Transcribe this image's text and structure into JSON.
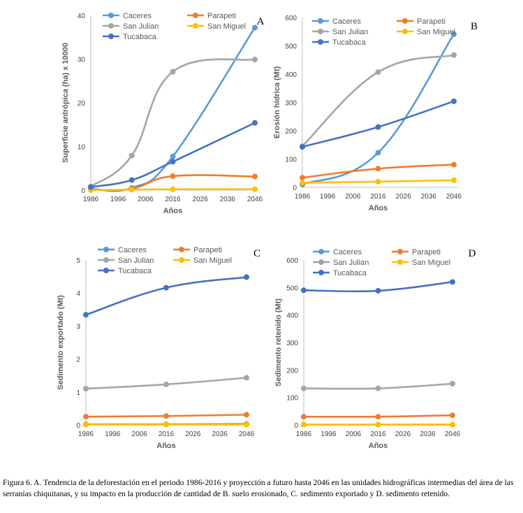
{
  "caption": "Figura 6. A. Tendencia de la deforestación en el periodo 1986-2016 y proyección a futuro hasta 2046 en las unidades hidrográficas intermedias del área de las serranías chiquitanas, y su impacto en la producción de cantidad de B. suelo erosionado, C. sedimento exportado y D. sedimento retenido.",
  "chart_data": [
    {
      "panel": "A",
      "type": "line",
      "xlabel": "Años",
      "ylabel": "Superficie antrópica (ha) x 10000",
      "xticks": [
        1986,
        1996,
        2006,
        2016,
        2026,
        2036,
        2046
      ],
      "xlim": [
        1986,
        2046
      ],
      "ylim": [
        0,
        40
      ],
      "yticks": [
        0,
        10,
        20,
        30,
        40
      ],
      "series": [
        {
          "name": "Caceres",
          "color": "#5b9bd5",
          "x": [
            1986,
            2001,
            2016,
            2046
          ],
          "y": [
            0.3,
            0.5,
            7.7,
            37.2
          ]
        },
        {
          "name": "Parapeti",
          "color": "#ed7d31",
          "x": [
            1986,
            2001,
            2016,
            2046
          ],
          "y": [
            0.1,
            0.3,
            3.2,
            3.1
          ]
        },
        {
          "name": "San Julian",
          "color": "#a5a5a5",
          "x": [
            1986,
            2001,
            2016,
            2046
          ],
          "y": [
            0.8,
            7.9,
            27.1,
            29.9
          ]
        },
        {
          "name": "San Miguel",
          "color": "#ffc000",
          "x": [
            1986,
            2001,
            2016,
            2046
          ],
          "y": [
            0.0,
            0.1,
            0.2,
            0.2
          ]
        },
        {
          "name": "Tucabaca",
          "color": "#4472c4",
          "x": [
            1986,
            2001,
            2016,
            2046
          ],
          "y": [
            0.7,
            2.3,
            6.5,
            15.4
          ]
        }
      ]
    },
    {
      "panel": "B",
      "type": "line",
      "xlabel": "Años",
      "ylabel": "Erosión hídrica (Mt)",
      "xticks": [
        1986,
        1996,
        2006,
        2016,
        2026,
        2036,
        2046
      ],
      "xlim": [
        1986,
        2046
      ],
      "ylim": [
        0,
        600
      ],
      "yticks": [
        0,
        100,
        200,
        300,
        400,
        500,
        600
      ],
      "series": [
        {
          "name": "Caceres",
          "color": "#5b9bd5",
          "x": [
            1986,
            2016,
            2046
          ],
          "y": [
            10,
            122,
            541
          ]
        },
        {
          "name": "Parapeti",
          "color": "#ed7d31",
          "x": [
            1986,
            2016,
            2046
          ],
          "y": [
            34,
            66,
            80
          ]
        },
        {
          "name": "San Julian",
          "color": "#a5a5a5",
          "x": [
            1986,
            2016,
            2046
          ],
          "y": [
            145,
            407,
            467
          ]
        },
        {
          "name": "San Miguel",
          "color": "#ffc000",
          "x": [
            1986,
            2016,
            2046
          ],
          "y": [
            16,
            20,
            25
          ]
        },
        {
          "name": "Tucabaca",
          "color": "#4472c4",
          "x": [
            1986,
            2016,
            2046
          ],
          "y": [
            143,
            213,
            304
          ]
        }
      ]
    },
    {
      "panel": "C",
      "type": "line",
      "xlabel": "Años",
      "ylabel": "Sedimento exportado (Mt)",
      "xticks": [
        1986,
        1996,
        2006,
        2016,
        2026,
        2036,
        2046
      ],
      "xlim": [
        1986,
        2046
      ],
      "ylim": [
        0,
        5
      ],
      "yticks": [
        0,
        1,
        2,
        3,
        4,
        5
      ],
      "series": [
        {
          "name": "Caceres",
          "color": "#5b9bd5",
          "x": [
            1986,
            2016,
            2046
          ],
          "y": [
            0.02,
            0.02,
            0.03
          ]
        },
        {
          "name": "Parapeti",
          "color": "#ed7d31",
          "x": [
            1986,
            2016,
            2046
          ],
          "y": [
            0.25,
            0.27,
            0.31
          ]
        },
        {
          "name": "San Julian",
          "color": "#a5a5a5",
          "x": [
            1986,
            2016,
            2046
          ],
          "y": [
            1.1,
            1.23,
            1.43
          ]
        },
        {
          "name": "San Miguel",
          "color": "#ffc000",
          "x": [
            1986,
            2016,
            2046
          ],
          "y": [
            0.01,
            0.01,
            0.01
          ]
        },
        {
          "name": "Tucabaca",
          "color": "#4472c4",
          "x": [
            1986,
            2016,
            2046
          ],
          "y": [
            3.34,
            4.16,
            4.48
          ]
        }
      ]
    },
    {
      "panel": "D",
      "type": "line",
      "xlabel": "Años",
      "ylabel": "Sedimento retenido (Mt)",
      "xticks": [
        1986,
        1996,
        2006,
        2016,
        2026,
        2036,
        2046
      ],
      "xlim": [
        1986,
        2046
      ],
      "ylim": [
        0,
        600
      ],
      "yticks": [
        0,
        100,
        200,
        300,
        400,
        500,
        600
      ],
      "series": [
        {
          "name": "Caceres",
          "color": "#5b9bd5",
          "x": [
            1986,
            2016,
            2046
          ],
          "y": [
            1,
            1,
            1
          ]
        },
        {
          "name": "Parapeti",
          "color": "#ed7d31",
          "x": [
            1986,
            2016,
            2046
          ],
          "y": [
            30,
            30,
            35
          ]
        },
        {
          "name": "San Julian",
          "color": "#a5a5a5",
          "x": [
            1986,
            2016,
            2046
          ],
          "y": [
            133,
            133,
            150
          ]
        },
        {
          "name": "San Miguel",
          "color": "#ffc000",
          "x": [
            1986,
            2016,
            2046
          ],
          "y": [
            1,
            1,
            1
          ]
        },
        {
          "name": "Tucabaca",
          "color": "#4472c4",
          "x": [
            1986,
            2016,
            2046
          ],
          "y": [
            490,
            488,
            520
          ]
        }
      ]
    }
  ]
}
